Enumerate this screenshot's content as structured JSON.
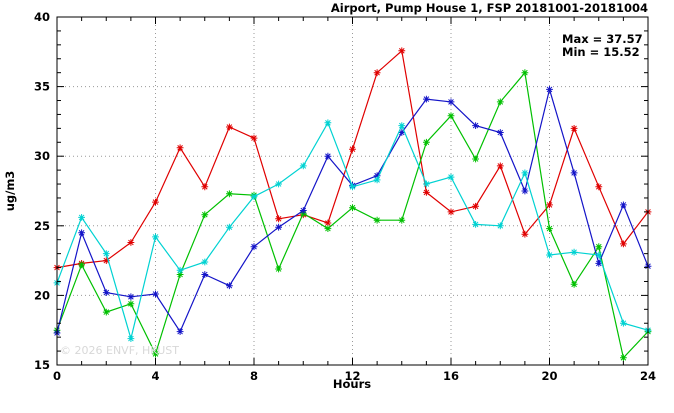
{
  "title": "Airport, Pump House 1, FSP 20181001-20181004",
  "annotations": {
    "max_label": "Max = 37.57",
    "min_label": "Min = 15.52"
  },
  "watermark": "© 2026  ENVF, HKUST",
  "chart_data": {
    "type": "line",
    "title": "Airport, Pump House 1, FSP 20181001-20181004",
    "xlabel": "Hours",
    "ylabel": "ug/m3",
    "xlim": [
      0,
      24
    ],
    "ylim": [
      15,
      40
    ],
    "xticks": [
      0,
      4,
      8,
      12,
      16,
      20,
      24
    ],
    "yticks": [
      15,
      20,
      25,
      30,
      35,
      40
    ],
    "minor_x_step": 1,
    "minor_y_step": 1,
    "grid": true,
    "legend_position": "none",
    "max_value": 37.57,
    "min_value": 15.52,
    "x": [
      0,
      1,
      2,
      3,
      4,
      5,
      6,
      7,
      8,
      9,
      10,
      11,
      12,
      13,
      14,
      15,
      16,
      17,
      18,
      19,
      20,
      21,
      22,
      23,
      24
    ],
    "series": [
      {
        "name": "red",
        "color": "#e00000",
        "values": [
          22.0,
          22.3,
          22.5,
          23.8,
          26.7,
          30.6,
          27.8,
          32.1,
          31.3,
          25.5,
          25.8,
          25.2,
          30.5,
          36.0,
          37.57,
          27.4,
          26.0,
          26.4,
          29.3,
          24.4,
          26.5,
          32.0,
          27.8,
          23.7,
          26.0
        ]
      },
      {
        "name": "green",
        "color": "#00c000",
        "values": [
          17.5,
          22.2,
          18.8,
          19.4,
          15.8,
          21.5,
          25.8,
          27.3,
          27.2,
          21.9,
          25.9,
          24.8,
          26.3,
          25.4,
          25.4,
          31.0,
          32.9,
          29.8,
          33.9,
          36.0,
          24.8,
          20.8,
          23.5,
          15.52,
          17.4
        ]
      },
      {
        "name": "blue",
        "color": "#1414c8",
        "values": [
          17.3,
          24.5,
          20.2,
          19.9,
          20.1,
          17.4,
          21.5,
          20.7,
          23.5,
          24.9,
          26.1,
          30.0,
          27.9,
          28.6,
          31.7,
          34.1,
          33.9,
          32.2,
          31.7,
          27.5,
          34.8,
          28.8,
          22.3,
          26.5,
          22.1
        ]
      },
      {
        "name": "cyan",
        "color": "#00d2d2",
        "values": [
          20.9,
          25.6,
          23.0,
          16.9,
          24.2,
          21.8,
          22.4,
          24.9,
          27.1,
          28.0,
          29.3,
          32.4,
          27.8,
          28.3,
          32.2,
          28.0,
          28.5,
          25.1,
          25.0,
          28.8,
          22.9,
          23.1,
          22.9,
          18.0,
          17.5
        ]
      }
    ]
  }
}
